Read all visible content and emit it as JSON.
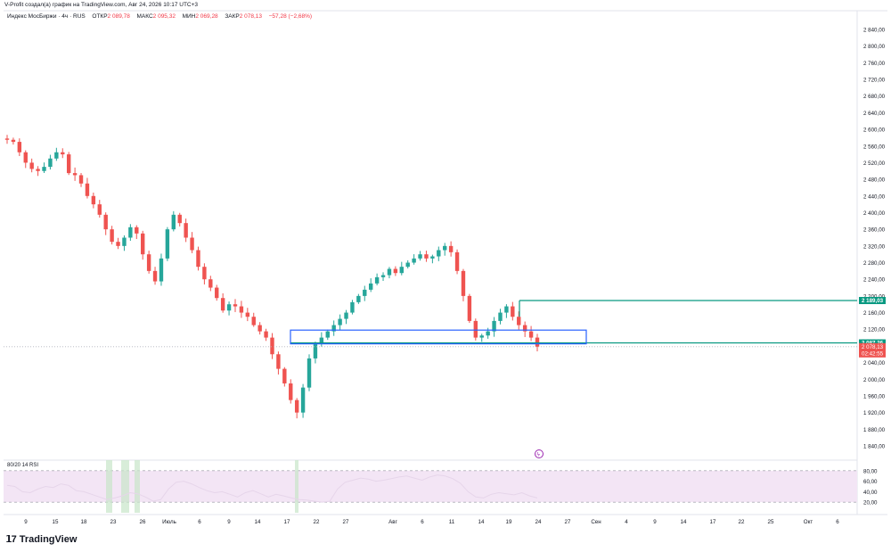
{
  "header": {
    "text": "V-Profit создал(а) график на TradingView.com, Авг 24, 2026 10:17 UTC+3"
  },
  "legend": {
    "symbol": "Индекс МосБиржи · 4ч · RUS",
    "open_label": "ОТКР",
    "open_value": "2 089,78",
    "high_label": "МАКС",
    "high_value": "2 095,32",
    "low_label": "МИН",
    "low_value": "2 069,28",
    "close_label": "ЗАКР",
    "close_value": "2 078,13",
    "change": "−57,28 (−2,68%)"
  },
  "rsi_panel": {
    "title": "80/20 14 RSI",
    "ticks": [
      "80,00",
      "60,00",
      "40,00",
      "20,00"
    ]
  },
  "price_axis": {
    "ticks": [
      "2 840,00",
      "2 800,00",
      "2 760,00",
      "2 720,00",
      "2 680,00",
      "2 640,00",
      "2 600,00",
      "2 560,00",
      "2 520,00",
      "2 480,00",
      "2 440,00",
      "2 400,00",
      "2 360,00",
      "2 320,00",
      "2 280,00",
      "2 240,00",
      "2 200,00",
      "2 160,00",
      "2 120,00",
      "2 080,00",
      "2 040,00",
      "2 000,00",
      "1 960,00",
      "1 920,00",
      "1 880,00",
      "1 840,00"
    ]
  },
  "price_tags": {
    "level_upper": "2 189,03",
    "level_lower": "2 087,26",
    "last_price": "2 078,13",
    "countdown": "02:42:55"
  },
  "time_axis": {
    "labels": [
      "9",
      "15",
      "18",
      "23",
      "26",
      "Июль",
      "6",
      "9",
      "14",
      "17",
      "22",
      "27",
      "Авг",
      "6",
      "11",
      "14",
      "19",
      "24",
      "27",
      "Сен",
      "4",
      "9",
      "14",
      "17",
      "22",
      "25",
      "Окт",
      "6"
    ]
  },
  "brand": {
    "name": "TradingView"
  },
  "colors": {
    "up": "#26a69a",
    "down": "#ef5350",
    "box": "#2962ff",
    "level": "#089981",
    "rsi_bg": "#f3e5f5"
  },
  "chart_data": {
    "type": "candlestick",
    "title": "Индекс МосБиржи · 4ч · RUS",
    "ylim": [
      1840,
      2860
    ],
    "y_axis_side": "right",
    "x_labels": [
      "9",
      "15",
      "18",
      "23",
      "26",
      "Июль",
      "6",
      "9",
      "14",
      "17",
      "22",
      "27",
      "Авг",
      "6",
      "11",
      "14",
      "19",
      "24",
      "27",
      "Сен",
      "4",
      "9",
      "14",
      "17",
      "22",
      "25",
      "Окт",
      "6"
    ],
    "close_path": [
      2575,
      2570,
      2545,
      2520,
      2505,
      2500,
      2510,
      2530,
      2545,
      2540,
      2495,
      2490,
      2470,
      2440,
      2420,
      2395,
      2360,
      2330,
      2320,
      2340,
      2365,
      2350,
      2300,
      2260,
      2235,
      2290,
      2360,
      2395,
      2375,
      2340,
      2310,
      2270,
      2240,
      2220,
      2195,
      2165,
      2180,
      2175,
      2160,
      2150,
      2130,
      2115,
      2100,
      2060,
      2025,
      1990,
      1950,
      1920,
      1980,
      2050,
      2085,
      2100,
      2115,
      2130,
      2145,
      2160,
      2185,
      2200,
      2215,
      2230,
      2245,
      2250,
      2265,
      2255,
      2270,
      2280,
      2290,
      2300,
      2290,
      2295,
      2310,
      2320,
      2305,
      2260,
      2200,
      2140,
      2100,
      2105,
      2115,
      2140,
      2160,
      2175,
      2150,
      2130,
      2115,
      2100,
      2078
    ],
    "last_candle": {
      "open": 2089.78,
      "high": 2095.32,
      "low": 2069.28,
      "close": 2078.13,
      "change": -57.28,
      "change_pct": -2.68
    },
    "levels": [
      {
        "name": "upper-level",
        "value": 2189.03
      },
      {
        "name": "lower-level",
        "value": 2087.26
      }
    ],
    "zone": {
      "top": 2118,
      "bottom": 2085
    },
    "rsi": {
      "levels": [
        80,
        20
      ],
      "ylim": [
        10,
        90
      ],
      "values": [
        52,
        50,
        40,
        38,
        45,
        50,
        48,
        55,
        52,
        42,
        40,
        35,
        30,
        25,
        28,
        32,
        38,
        36,
        30,
        22,
        25,
        45,
        58,
        60,
        55,
        48,
        42,
        38,
        40,
        35,
        30,
        38,
        42,
        36,
        30,
        35,
        32,
        28,
        25,
        24,
        22,
        20,
        22,
        45,
        58,
        62,
        66,
        64,
        60,
        62,
        65,
        68,
        70,
        66,
        62,
        68,
        72,
        70,
        65,
        56,
        40,
        30,
        28,
        35,
        38,
        36,
        34,
        38,
        32,
        28
      ]
    }
  }
}
